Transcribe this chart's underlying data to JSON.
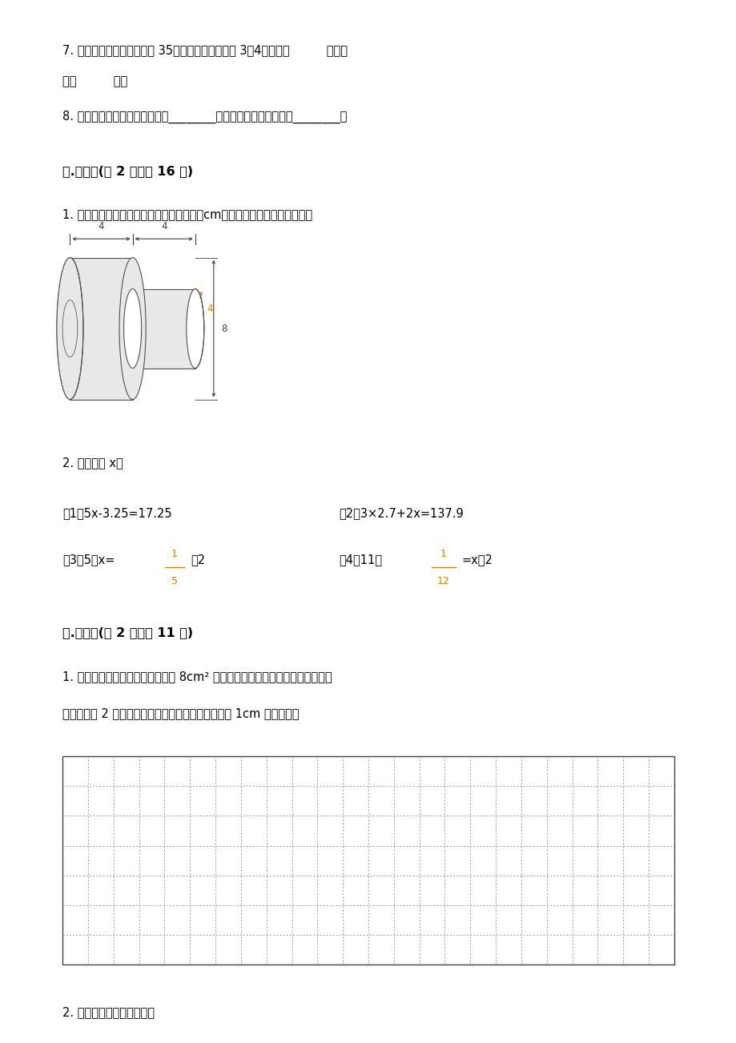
{
  "bg_color": "#ffffff",
  "page_width": 9.2,
  "page_height": 13.02,
  "q7_line1": "7. 甲、乙两个数的平均数是 35，甲数与乙数的比是 3：4，甲是（          ）、乙",
  "q7_line2": "是（          ）。",
  "q8": "8. 数轴上表示正数的点在原点的________，表示负数的点在原点的________。",
  "sec4_title": "四.计算题(共 2 题，共 16 分)",
  "sec4_q1": "1. 如图是一种钢制的配件（图中数据单位：cm）请计算它的表面积和体积。",
  "sec4_q2": "2. 求未知数 x。",
  "eq1a": "（1）5x-3.25=17.25",
  "eq1b": "（2）3×2.7+2x=137.9",
  "eq3_pre": "（3）5：x=",
  "eq3_post": "：2",
  "eq4_pre": "（4）11：",
  "eq4_post": "=x：2",
  "sec5_title": "五.作图题(共 2 题，共 11 分)",
  "sec5_q1_line1": "1. 在下面的方格纸中画一个面积是 8cm² 的长方形，再把这个长方形的各边长扩",
  "sec5_q1_line2": "大到原来的 2 倍，画出图形。（每个方格代表边长为 1cm 的正方形）",
  "sec5_q2": "2. 在直线上表示下列各数。",
  "grid_cols": 24,
  "grid_rows": 7,
  "fraction_color": "#c8820a"
}
